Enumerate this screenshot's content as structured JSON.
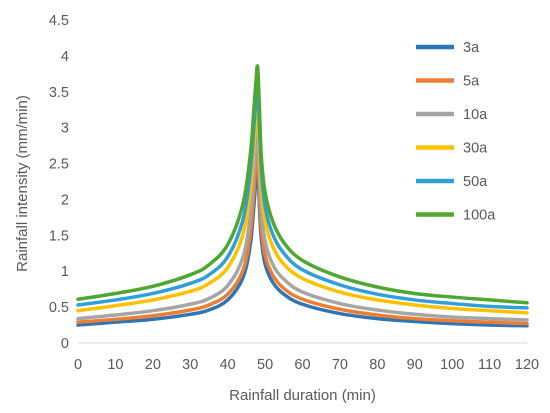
{
  "chart_data": {
    "type": "line",
    "title": "",
    "xlabel": "Rainfall duration (min)",
    "ylabel": "Rainfall intensity (mm/min)",
    "xlim": [
      0,
      120
    ],
    "ylim": [
      0,
      4.5
    ],
    "x_ticks": [
      "0",
      "10",
      "20",
      "30",
      "40",
      "50",
      "60",
      "70",
      "80",
      "90",
      "100",
      "110",
      "120"
    ],
    "y_ticks": [
      "0",
      "0.5",
      "1",
      "1.5",
      "2",
      "2.5",
      "3",
      "3.5",
      "4",
      "4.5"
    ],
    "grid": false,
    "legend_position": "right",
    "x": [
      0,
      10,
      20,
      30,
      35,
      40,
      44,
      46,
      47,
      47.5,
      48,
      48.5,
      49,
      50,
      52,
      55,
      60,
      70,
      80,
      90,
      100,
      110,
      120
    ],
    "series": [
      {
        "name": "3a",
        "color": "#2E75B6",
        "values": [
          0.25,
          0.29,
          0.33,
          0.4,
          0.46,
          0.6,
          0.9,
          1.35,
          1.9,
          2.25,
          2.55,
          1.9,
          1.45,
          1.1,
          0.85,
          0.68,
          0.54,
          0.41,
          0.34,
          0.3,
          0.27,
          0.25,
          0.24
        ]
      },
      {
        "name": "5a",
        "color": "#ED7D31",
        "values": [
          0.29,
          0.33,
          0.38,
          0.46,
          0.53,
          0.68,
          1.0,
          1.5,
          2.1,
          2.5,
          2.8,
          2.1,
          1.6,
          1.22,
          0.95,
          0.76,
          0.61,
          0.47,
          0.39,
          0.34,
          0.31,
          0.29,
          0.27
        ]
      },
      {
        "name": "10a",
        "color": "#A5A5A5",
        "values": [
          0.34,
          0.39,
          0.45,
          0.54,
          0.62,
          0.8,
          1.18,
          1.75,
          2.4,
          2.8,
          3.05,
          2.4,
          1.85,
          1.42,
          1.1,
          0.89,
          0.71,
          0.55,
          0.46,
          0.4,
          0.36,
          0.34,
          0.32
        ]
      },
      {
        "name": "30a",
        "color": "#FFC000",
        "values": [
          0.45,
          0.52,
          0.6,
          0.72,
          0.83,
          1.05,
          1.5,
          2.1,
          2.75,
          3.1,
          3.35,
          2.75,
          2.15,
          1.7,
          1.35,
          1.1,
          0.9,
          0.71,
          0.6,
          0.53,
          0.48,
          0.45,
          0.42
        ]
      },
      {
        "name": "50a",
        "color": "#2F9FD8",
        "values": [
          0.53,
          0.6,
          0.69,
          0.83,
          0.95,
          1.2,
          1.7,
          2.35,
          3.0,
          3.35,
          3.6,
          3.0,
          2.4,
          1.9,
          1.52,
          1.25,
          1.02,
          0.81,
          0.68,
          0.6,
          0.55,
          0.51,
          0.49
        ]
      },
      {
        "name": "100a",
        "color": "#4EA72E",
        "values": [
          0.61,
          0.69,
          0.79,
          0.95,
          1.09,
          1.37,
          1.92,
          2.6,
          3.25,
          3.6,
          3.85,
          3.25,
          2.6,
          2.1,
          1.7,
          1.4,
          1.15,
          0.92,
          0.78,
          0.69,
          0.64,
          0.6,
          0.56
        ]
      }
    ]
  }
}
